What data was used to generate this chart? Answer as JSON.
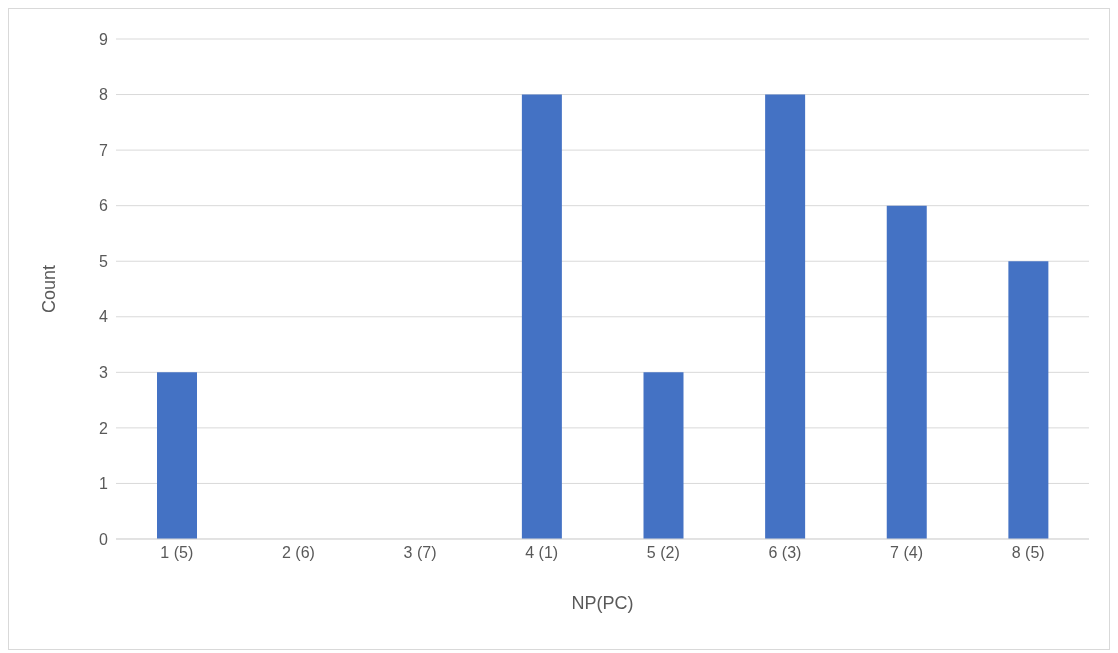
{
  "chart_data": {
    "type": "bar",
    "xlabel": "NP(PC)",
    "ylabel": "Count",
    "categories": [
      "1 (5)",
      "2 (6)",
      "3 (7)",
      "4 (1)",
      "5 (2)",
      "6 (3)",
      "7 (4)",
      "8 (5)"
    ],
    "values": [
      3,
      0,
      0,
      8,
      3,
      8,
      6,
      5
    ],
    "color": "#4472c4",
    "ylim": [
      0,
      9
    ],
    "yticks": [
      0,
      1,
      2,
      3,
      4,
      5,
      6,
      7,
      8,
      9
    ],
    "grid": "y",
    "legend": false
  }
}
